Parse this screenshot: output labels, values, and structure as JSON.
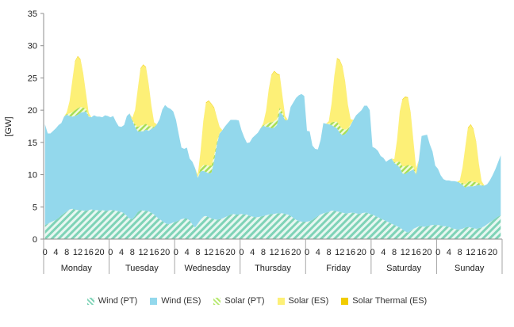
{
  "chart_data": {
    "type": "area",
    "title": "",
    "xlabel": "",
    "ylabel": "[GW]",
    "ylim": [
      0,
      35
    ],
    "yticks": [
      0,
      5,
      10,
      15,
      20,
      25,
      30,
      35
    ],
    "hour_tick_labels": [
      "0",
      "4",
      "8",
      "12",
      "16",
      "20"
    ],
    "days": [
      "Monday",
      "Tuesday",
      "Wednesday",
      "Thursday",
      "Friday",
      "Saturday",
      "Sunday"
    ],
    "stacked": true,
    "grid": false,
    "legend_position": "bottom",
    "series": [
      {
        "name": "Wind (PT)",
        "color": "#7fd3b7",
        "pattern": "diagonal-hatch",
        "day_values": [
          [
            2.2,
            2.4,
            2.6,
            2.8,
            3.0,
            3.3,
            3.7,
            4.0,
            4.3,
            4.6,
            4.7,
            4.6,
            4.5,
            4.5,
            4.4,
            4.4,
            4.5,
            4.6,
            4.5,
            4.5,
            4.4,
            4.5,
            4.4,
            4.4
          ],
          [
            4.5,
            4.5,
            4.4,
            4.3,
            4.2,
            4.0,
            3.6,
            3.2,
            3.1,
            3.6,
            4.2,
            4.5,
            4.4,
            4.4,
            4.3,
            4.1,
            3.8,
            3.4,
            3.1,
            2.8,
            2.5,
            2.3,
            2.4,
            2.6
          ],
          [
            2.7,
            2.9,
            3.1,
            3.2,
            3.2,
            2.9,
            2.3,
            1.8,
            2.4,
            3.0,
            3.5,
            3.6,
            3.4,
            3.2,
            3.1,
            3.0,
            3.1,
            3.2,
            3.4,
            3.6,
            3.8,
            3.9,
            3.8,
            3.8
          ],
          [
            3.9,
            3.8,
            3.8,
            3.6,
            3.5,
            3.4,
            3.4,
            3.5,
            3.6,
            3.7,
            3.8,
            3.9,
            3.9,
            4.0,
            4.0,
            4.0,
            3.9,
            3.8,
            3.6,
            3.3,
            3.0,
            2.8,
            2.7,
            2.7
          ],
          [
            2.7,
            2.8,
            3.0,
            3.3,
            3.6,
            3.8,
            4.0,
            4.1,
            4.2,
            4.4,
            4.4,
            4.3,
            4.2,
            4.1,
            4.0,
            4.0,
            4.1,
            4.1,
            4.0,
            3.9,
            4.0,
            4.1,
            4.1,
            3.9
          ],
          [
            3.8,
            3.6,
            3.4,
            3.2,
            3.0,
            2.8,
            2.6,
            2.4,
            2.2,
            2.0,
            1.8,
            1.5,
            1.2,
            1.0,
            1.3,
            1.6,
            1.8,
            2.0,
            2.0,
            1.9,
            2.0,
            2.1,
            2.2,
            2.2
          ],
          [
            2.2,
            2.1,
            2.0,
            2.0,
            1.9,
            1.7,
            1.6,
            1.5,
            1.5,
            1.6,
            1.8,
            1.9,
            1.8,
            1.7,
            1.6,
            1.7,
            1.8,
            2.0,
            2.3,
            2.6,
            2.9,
            3.2,
            3.5,
            3.7
          ]
        ]
      },
      {
        "name": "Wind (ES)",
        "color": "#93d8ec",
        "pattern": "solid",
        "day_values": [
          [
            15.6,
            14.0,
            13.8,
            14.0,
            14.2,
            14.4,
            14.3,
            15.0,
            15.0,
            14.5,
            14.3,
            14.5,
            14.8,
            15.1,
            15.3,
            15.4,
            14.5,
            14.3,
            14.7,
            14.5,
            14.6,
            14.4,
            14.8,
            14.7
          ],
          [
            14.4,
            14.6,
            13.8,
            13.2,
            13.2,
            13.7,
            15.5,
            16.3,
            15.3,
            13.8,
            12.5,
            12.2,
            12.3,
            12.6,
            12.5,
            13.0,
            13.5,
            14.4,
            15.5,
            17.3,
            18.3,
            18.1,
            17.8,
            17.2
          ],
          [
            15.8,
            13.4,
            11.1,
            10.8,
            11.0,
            9.6,
            9.7,
            9.2,
            7.1,
            7.5,
            7.1,
            6.8,
            6.8,
            7.1,
            9.1,
            11.7,
            13.3,
            13.7,
            14.1,
            14.4,
            14.7,
            14.6,
            14.7,
            14.6
          ],
          [
            13.0,
            12.0,
            11.1,
            11.4,
            12.2,
            12.7,
            13.1,
            13.7,
            14.0,
            13.7,
            13.6,
            13.3,
            13.4,
            13.7,
            15.7,
            15.3,
            14.5,
            14.7,
            16.9,
            17.9,
            18.9,
            19.5,
            19.8,
            19.5
          ],
          [
            14.1,
            13.9,
            11.5,
            10.7,
            10.3,
            11.6,
            14.0,
            13.8,
            13.6,
            13.3,
            13.0,
            12.9,
            12.3,
            12.0,
            12.3,
            12.8,
            13.6,
            14.4,
            15.2,
            15.7,
            16.0,
            16.6,
            16.6,
            16.1
          ],
          [
            10.5,
            10.5,
            10.3,
            9.7,
            9.6,
            9.2,
            9.7,
            10.1,
            9.6,
            9.5,
            9.3,
            8.7,
            8.9,
            9.4,
            9.3,
            9.2,
            8.2,
            10.3,
            14.0,
            14.2,
            14.2,
            12.6,
            11.4,
            9.2
          ],
          [
            8.7,
            7.8,
            7.3,
            7.1,
            7.2,
            7.3,
            7.4,
            7.4,
            7.2,
            6.8,
            6.2,
            6.3,
            6.4,
            6.5,
            6.7,
            6.7,
            6.5,
            6.3,
            6.2,
            6.5,
            7.0,
            7.6,
            8.4,
            9.3
          ]
        ]
      },
      {
        "name": "Solar (PT)",
        "color": "#b5e86d",
        "pattern": "diagonal-hatch",
        "day_values": [
          [
            0,
            0,
            0,
            0,
            0,
            0,
            0,
            0,
            0.1,
            0.4,
            0.7,
            0.9,
            1.0,
            0.9,
            0.7,
            0.4,
            0.1,
            0,
            0,
            0,
            0,
            0,
            0,
            0
          ],
          [
            0,
            0,
            0,
            0,
            0,
            0,
            0,
            0,
            0.1,
            0.4,
            0.7,
            0.9,
            1.0,
            0.9,
            0.7,
            0.4,
            0.1,
            0,
            0,
            0,
            0,
            0,
            0,
            0
          ],
          [
            0,
            0,
            0,
            0,
            0,
            0,
            0,
            0,
            0.1,
            0.5,
            0.9,
            1.1,
            1.2,
            1.1,
            0.8,
            0.4,
            0.1,
            0,
            0,
            0,
            0,
            0,
            0,
            0
          ],
          [
            0,
            0,
            0,
            0,
            0,
            0,
            0,
            0,
            0.1,
            0.4,
            0.7,
            0.9,
            1.0,
            0.9,
            0.7,
            0.4,
            0.1,
            0,
            0,
            0,
            0,
            0,
            0,
            0
          ],
          [
            0,
            0,
            0,
            0,
            0,
            0,
            0,
            0,
            0.1,
            0.4,
            0.8,
            1.0,
            1.1,
            1.0,
            0.7,
            0.4,
            0.1,
            0,
            0,
            0,
            0,
            0,
            0,
            0
          ],
          [
            0,
            0,
            0,
            0,
            0,
            0,
            0,
            0,
            0.1,
            0.5,
            0.9,
            1.1,
            1.2,
            1.1,
            0.8,
            0.4,
            0.1,
            0,
            0,
            0,
            0,
            0,
            0,
            0
          ],
          [
            0,
            0,
            0,
            0,
            0,
            0,
            0,
            0,
            0.1,
            0.3,
            0.5,
            0.7,
            0.8,
            0.7,
            0.5,
            0.3,
            0.1,
            0,
            0,
            0,
            0,
            0,
            0,
            0
          ]
        ]
      },
      {
        "name": "Solar (ES)",
        "color": "#fdf077",
        "pattern": "solid",
        "day_values": [
          [
            0,
            0,
            0,
            0,
            0,
            0,
            0,
            0,
            0.3,
            1.9,
            4.8,
            7.5,
            8.0,
            7.3,
            5.2,
            2.4,
            0.5,
            0,
            0,
            0,
            0,
            0,
            0,
            0
          ],
          [
            0,
            0,
            0,
            0,
            0,
            0,
            0,
            0,
            0.3,
            2.2,
            5.8,
            8.8,
            9.3,
            8.7,
            6.4,
            3.1,
            0.7,
            0,
            0,
            0,
            0,
            0,
            0,
            0
          ],
          [
            0,
            0,
            0,
            0,
            0,
            0,
            0,
            0,
            0.4,
            2.6,
            6.7,
            9.6,
            10.0,
            9.5,
            7.3,
            3.7,
            0.9,
            0,
            0,
            0,
            0,
            0,
            0,
            0
          ],
          [
            0,
            0,
            0,
            0,
            0,
            0,
            0,
            0,
            0.3,
            2.1,
            5.1,
            7.3,
            7.7,
            7.0,
            5.0,
            2.5,
            0.6,
            0,
            0,
            0,
            0,
            0,
            0,
            0
          ],
          [
            0,
            0,
            0,
            0,
            0,
            0,
            0,
            0,
            0.4,
            2.9,
            7.0,
            9.8,
            10.1,
            9.6,
            7.3,
            3.6,
            0.8,
            0,
            0,
            0,
            0,
            0,
            0,
            0
          ],
          [
            0,
            0,
            0,
            0,
            0,
            0,
            0,
            0,
            0.5,
            3.4,
            7.7,
            10.3,
            10.7,
            10.4,
            8.1,
            4.0,
            0.9,
            0,
            0,
            0,
            0,
            0,
            0,
            0
          ],
          [
            0,
            0,
            0,
            0,
            0,
            0,
            0,
            0,
            0.3,
            2.4,
            5.7,
            8.3,
            8.7,
            8.1,
            6.2,
            2.9,
            0.6,
            0,
            0,
            0,
            0,
            0,
            0,
            0
          ]
        ]
      },
      {
        "name": "Solar Thermal (ES)",
        "color": "#f1cc00",
        "pattern": "solid",
        "day_values": [
          [
            0,
            0,
            0,
            0,
            0,
            0,
            0,
            0,
            0,
            0,
            0.05,
            0.1,
            0.1,
            0.1,
            0.1,
            0.05,
            0,
            0,
            0,
            0,
            0,
            0,
            0,
            0
          ],
          [
            0,
            0,
            0,
            0,
            0,
            0,
            0,
            0,
            0,
            0,
            0.05,
            0.1,
            0.1,
            0.1,
            0.1,
            0.05,
            0,
            0,
            0,
            0,
            0,
            0,
            0,
            0
          ],
          [
            0,
            0,
            0,
            0,
            0,
            0,
            0,
            0,
            0,
            0,
            0.05,
            0.1,
            0.1,
            0.1,
            0.1,
            0.05,
            0,
            0,
            0,
            0,
            0,
            0,
            0,
            0
          ],
          [
            0,
            0,
            0,
            0,
            0,
            0,
            0,
            0,
            0,
            0,
            0.05,
            0.1,
            0.1,
            0.1,
            0.1,
            0.05,
            0,
            0,
            0,
            0,
            0,
            0,
            0,
            0
          ],
          [
            0,
            0,
            0,
            0,
            0,
            0,
            0,
            0,
            0,
            0,
            0.05,
            0.1,
            0.1,
            0.1,
            0.1,
            0.05,
            0,
            0,
            0,
            0,
            0,
            0,
            0,
            0
          ],
          [
            0,
            0,
            0,
            0,
            0,
            0,
            0,
            0,
            0,
            0,
            0.05,
            0.1,
            0.1,
            0.1,
            0.1,
            0.05,
            0,
            0,
            0,
            0,
            0,
            0,
            0,
            0
          ],
          [
            0,
            0,
            0,
            0,
            0,
            0,
            0,
            0,
            0,
            0,
            0.05,
            0.1,
            0.1,
            0.1,
            0.1,
            0.05,
            0,
            0,
            0,
            0,
            0,
            0,
            0,
            0
          ]
        ]
      }
    ]
  }
}
